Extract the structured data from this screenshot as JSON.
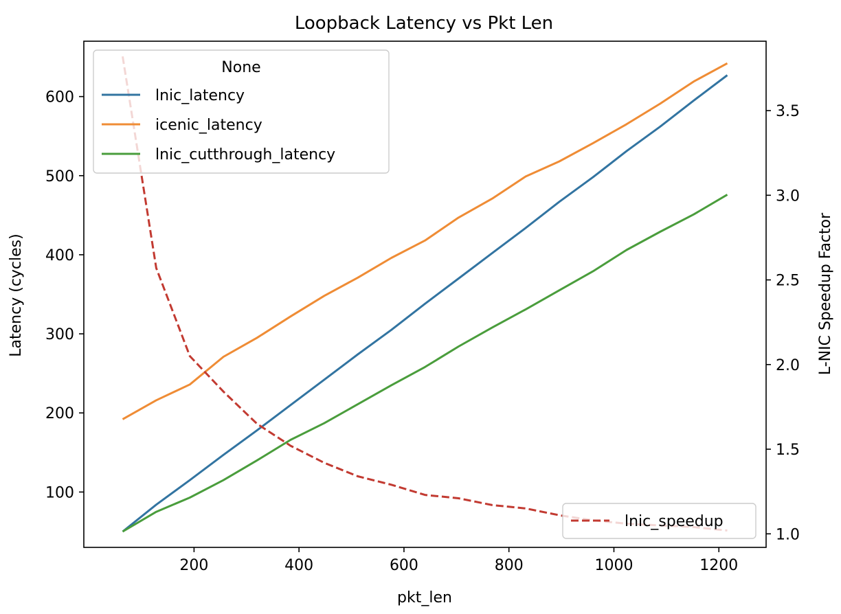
{
  "chart_data": {
    "type": "line",
    "title": "Loopback Latency vs Pkt Len",
    "xlabel": "pkt_len",
    "ylabel": "Latency (cycles)",
    "y2label": "L-NIC Speedup Factor",
    "x": [
      64,
      128,
      192,
      256,
      320,
      384,
      448,
      512,
      576,
      640,
      704,
      768,
      832,
      896,
      960,
      1024,
      1088,
      1152,
      1216
    ],
    "xlim": [
      -10,
      1290
    ],
    "ylim": [
      30,
      670
    ],
    "y2lim": [
      0.92,
      3.91
    ],
    "xticks": [
      200,
      400,
      600,
      800,
      1000,
      1200
    ],
    "yticks": [
      100,
      200,
      300,
      400,
      500,
      600
    ],
    "y2ticks": [
      1.0,
      1.5,
      2.0,
      2.5,
      3.0,
      3.5
    ],
    "y2tick_labels": [
      "1.0",
      "1.5",
      "2.0",
      "2.5",
      "3.0",
      "3.5"
    ],
    "series": [
      {
        "name": "lnic_latency",
        "axis": "left",
        "style": "solid",
        "color": "#3274a1",
        "values": [
          50,
          84,
          115,
          147,
          178,
          210,
          242,
          274,
          305,
          338,
          370,
          402,
          434,
          467,
          498,
          531,
          562,
          595,
          627
        ]
      },
      {
        "name": "icenic_latency",
        "axis": "left",
        "style": "solid",
        "color": "#ef8c35",
        "values": [
          192,
          216,
          236,
          271,
          295,
          322,
          348,
          371,
          396,
          418,
          447,
          471,
          499,
          518,
          541,
          565,
          591,
          619,
          642
        ]
      },
      {
        "name": "lnic_cutthrough_latency",
        "axis": "left",
        "style": "solid",
        "color": "#4a9d3c",
        "values": [
          50,
          75,
          93,
          115,
          140,
          166,
          187,
          211,
          235,
          258,
          284,
          308,
          331,
          355,
          379,
          406,
          429,
          451,
          476
        ]
      },
      {
        "name": "lnic_speedup",
        "axis": "right",
        "style": "dashed",
        "color": "#c23a31",
        "values": [
          3.82,
          2.57,
          2.05,
          1.84,
          1.65,
          1.52,
          1.42,
          1.34,
          1.29,
          1.23,
          1.21,
          1.17,
          1.15,
          1.11,
          1.08,
          1.06,
          1.05,
          1.04,
          1.02
        ]
      }
    ],
    "legend_left": {
      "title": "None",
      "placement": "upper-left",
      "entries": [
        "lnic_latency",
        "icenic_latency",
        "lnic_cutthrough_latency"
      ]
    },
    "legend_right": {
      "placement": "lower-right",
      "entries": [
        "lnic_speedup"
      ]
    },
    "grid": false
  }
}
